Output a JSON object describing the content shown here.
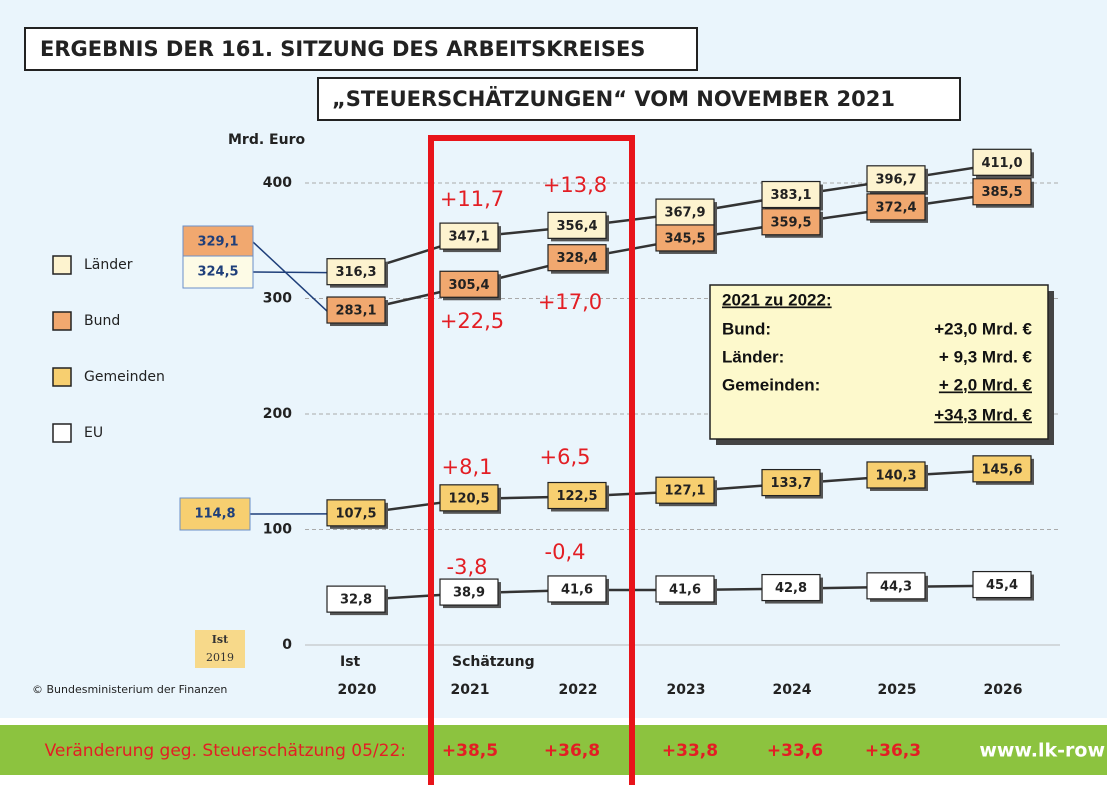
{
  "chart_data": {
    "type": "line",
    "title": "ERGEBNIS DER 161. SITZUNG DES ARBEITSKREISES",
    "subtitle": "„STEUERSCHÄTZUNGEN“ VOM NOVEMBER 2021",
    "y_label": "Mrd. Euro",
    "phase_labels": [
      "Ist",
      "Schätzung"
    ],
    "categories": [
      "2020",
      "2021",
      "2022",
      "2023",
      "2024",
      "2025",
      "2026"
    ],
    "ylim": [
      0,
      400
    ],
    "yticks": [
      0,
      100,
      200,
      300,
      400
    ],
    "grid": true,
    "legend": "left",
    "series": [
      {
        "name": "Länder",
        "color": "#fdf3cf",
        "values": [
          316.3,
          347.1,
          356.4,
          367.9,
          383.1,
          396.7,
          411.0
        ],
        "value_labels": [
          "316,3",
          "347,1",
          "356,4",
          "367,9",
          "383,1",
          "396,7",
          "411,0"
        ]
      },
      {
        "name": "Bund",
        "color": "#f1a86f",
        "values": [
          283.1,
          305.4,
          328.4,
          345.5,
          359.5,
          372.4,
          385.5
        ],
        "value_labels": [
          "283,1",
          "305,4",
          "328,4",
          "345,5",
          "359,5",
          "372,4",
          "385,5"
        ]
      },
      {
        "name": "Gemeinden",
        "color": "#f7cf70",
        "values": [
          107.5,
          120.5,
          122.5,
          127.1,
          133.7,
          140.3,
          145.6
        ],
        "value_labels": [
          "107,5",
          "120,5",
          "122,5",
          "127,1",
          "133,7",
          "140,3",
          "145,6"
        ]
      },
      {
        "name": "EU",
        "color": "#ffffff",
        "values": [
          32.8,
          38.9,
          41.6,
          41.6,
          42.8,
          44.3,
          45.4
        ],
        "value_labels": [
          "32,8",
          "38,9",
          "41,6",
          "41,6",
          "42,8",
          "44,3",
          "45,4"
        ]
      }
    ],
    "ist_2019": {
      "label": [
        "Ist",
        "2019"
      ],
      "values": [
        329.1,
        324.5,
        114.8
      ],
      "value_labels": [
        "329,1",
        "324,5",
        "114,8"
      ]
    },
    "annotations": [
      "+11,7",
      "+13,8",
      "+22,5",
      "+17,0",
      "+8,1",
      "+6,5",
      "-3,8",
      "-0,4"
    ],
    "summary": {
      "title": "2021 zu 2022:",
      "rows": [
        [
          "Bund:",
          "+23,0 Mrd. €"
        ],
        [
          "Länder:",
          "+ 9,3 Mrd. €"
        ],
        [
          "Gemeinden:",
          "+ 2,0 Mrd. €"
        ]
      ],
      "total": "+34,3 Mrd. €"
    },
    "source": "© Bundesministerium der Finanzen",
    "bottom_bar": {
      "label": "Veränderung geg. Steuerschätzung 05/22:",
      "labels": [
        "+38,5",
        "+36,8",
        "+33,8",
        "+33,6",
        "+36,3"
      ],
      "url": "www.lk-row"
    }
  }
}
